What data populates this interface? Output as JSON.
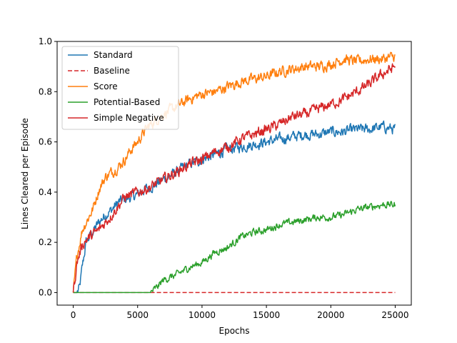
{
  "chart_data": {
    "type": "line",
    "title": "",
    "xlabel": "Epochs",
    "ylabel": "Lines Cleared per Episode",
    "xlim": [
      -1250,
      26250
    ],
    "ylim": [
      -0.05,
      1.0
    ],
    "xticks": [
      0,
      5000,
      10000,
      15000,
      20000,
      25000
    ],
    "yticks": [
      0.0,
      0.2,
      0.4,
      0.6,
      0.8,
      1.0
    ],
    "xtick_labels": [
      "0",
      "5000",
      "10000",
      "15000",
      "20000",
      "25000"
    ],
    "ytick_labels": [
      "0.0",
      "0.2",
      "0.4",
      "0.6",
      "0.8",
      "1.0"
    ],
    "grid": false,
    "legend_position": "upper-left",
    "series": [
      {
        "name": "Standard",
        "color": "#1f77b4",
        "dash": "solid",
        "noise": 0.012,
        "x": [
          0,
          300,
          500,
          700,
          1000,
          1500,
          2000,
          2500,
          3000,
          3500,
          4000,
          4500,
          5000,
          5500,
          6000,
          7000,
          8000,
          9000,
          10000,
          11000,
          12000,
          13000,
          14000,
          15000,
          16000,
          17000,
          18000,
          19000,
          20000,
          21000,
          22000,
          23000,
          24000,
          25000
        ],
        "values": [
          0.0,
          0.0,
          0.02,
          0.1,
          0.2,
          0.24,
          0.28,
          0.31,
          0.33,
          0.36,
          0.37,
          0.38,
          0.39,
          0.41,
          0.42,
          0.45,
          0.48,
          0.51,
          0.53,
          0.55,
          0.57,
          0.58,
          0.59,
          0.6,
          0.61,
          0.62,
          0.63,
          0.63,
          0.64,
          0.64,
          0.65,
          0.65,
          0.66,
          0.65
        ]
      },
      {
        "name": "Baseline",
        "color": "#d62728",
        "dash": "dashed",
        "noise": 0,
        "x": [
          0,
          25000
        ],
        "values": [
          0.0,
          0.0
        ]
      },
      {
        "name": "Score",
        "color": "#ff7f0e",
        "dash": "solid",
        "noise": 0.012,
        "x": [
          0,
          300,
          700,
          1000,
          1500,
          2000,
          2500,
          3000,
          3500,
          4000,
          4500,
          5000,
          5500,
          6000,
          7000,
          8000,
          9000,
          10000,
          11000,
          12000,
          13000,
          14000,
          15000,
          16000,
          17000,
          18000,
          19000,
          20000,
          21000,
          22000,
          23000,
          24000,
          25000
        ],
        "values": [
          0.0,
          0.15,
          0.25,
          0.28,
          0.33,
          0.41,
          0.46,
          0.48,
          0.5,
          0.53,
          0.57,
          0.6,
          0.64,
          0.67,
          0.71,
          0.74,
          0.77,
          0.79,
          0.8,
          0.82,
          0.84,
          0.85,
          0.86,
          0.88,
          0.89,
          0.9,
          0.9,
          0.91,
          0.93,
          0.92,
          0.93,
          0.93,
          0.94
        ]
      },
      {
        "name": "Potential-Based",
        "color": "#2ca02c",
        "dash": "solid",
        "noise": 0.008,
        "x": [
          0,
          6000,
          6500,
          7000,
          8000,
          9000,
          10000,
          11000,
          11500,
          12000,
          13000,
          14000,
          15000,
          16000,
          17000,
          18000,
          19000,
          20000,
          21000,
          22000,
          23000,
          24000,
          25000
        ],
        "values": [
          0.0,
          0.0,
          0.02,
          0.05,
          0.07,
          0.1,
          0.12,
          0.16,
          0.17,
          0.18,
          0.22,
          0.24,
          0.25,
          0.27,
          0.28,
          0.29,
          0.3,
          0.3,
          0.31,
          0.33,
          0.34,
          0.35,
          0.35
        ]
      },
      {
        "name": "Simple Negative",
        "color": "#d62728",
        "dash": "solid",
        "noise": 0.012,
        "x": [
          0,
          300,
          700,
          1000,
          2000,
          3000,
          4000,
          5000,
          6000,
          7000,
          8000,
          9000,
          10000,
          11000,
          12000,
          13000,
          14000,
          15000,
          16000,
          17000,
          18000,
          19000,
          20000,
          21000,
          22000,
          23000,
          24000,
          25000
        ],
        "values": [
          0.0,
          0.12,
          0.19,
          0.21,
          0.25,
          0.31,
          0.38,
          0.4,
          0.42,
          0.45,
          0.48,
          0.51,
          0.53,
          0.56,
          0.58,
          0.61,
          0.63,
          0.65,
          0.67,
          0.7,
          0.71,
          0.73,
          0.75,
          0.77,
          0.8,
          0.83,
          0.87,
          0.9
        ]
      }
    ]
  }
}
